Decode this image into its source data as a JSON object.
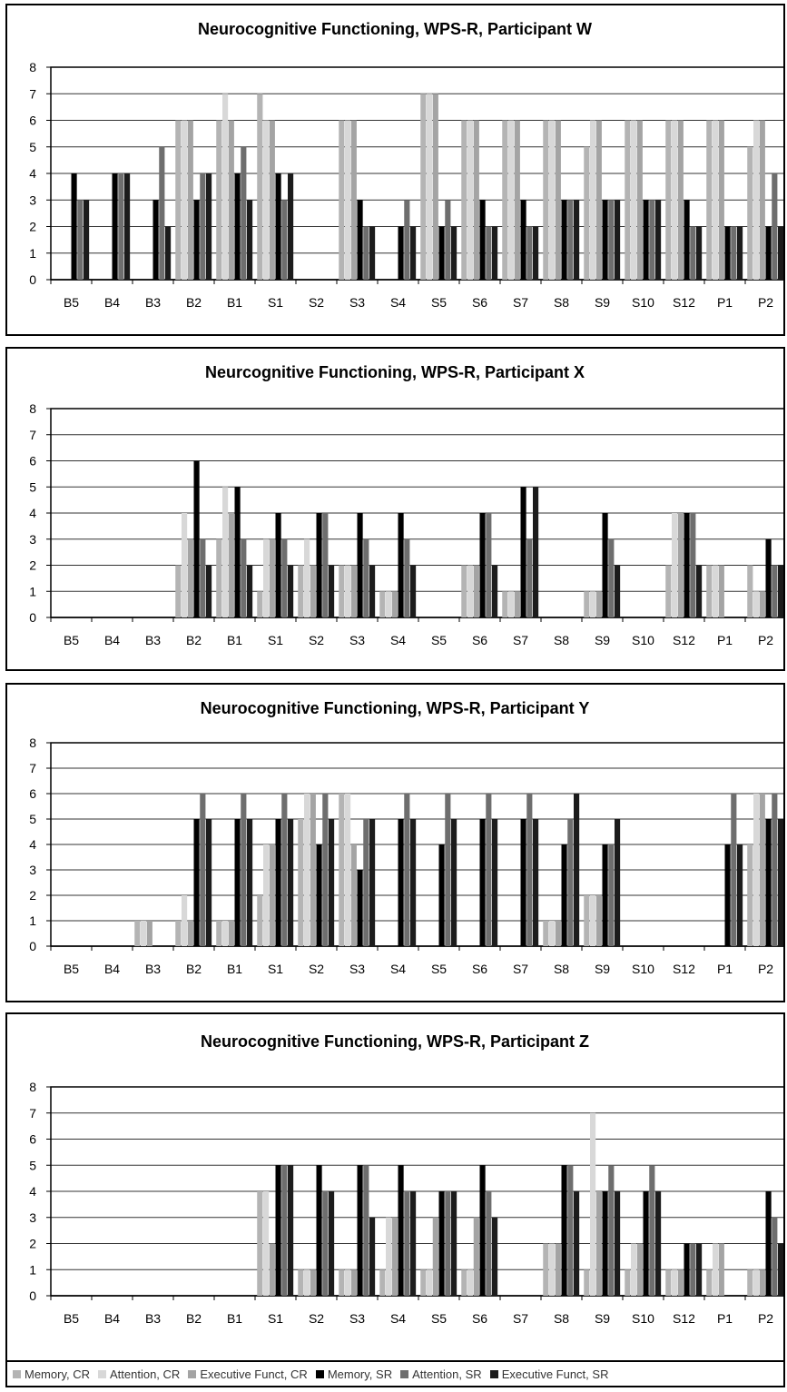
{
  "series_styles": [
    {
      "name": "Memory, CR",
      "color": "#b4b4b4"
    },
    {
      "name": "Attention, CR",
      "color": "#d8d8d8"
    },
    {
      "name": "Executive Funct, CR",
      "color": "#a4a4a4"
    },
    {
      "name": "Memory, SR",
      "color": "#000000"
    },
    {
      "name": "Attention, SR",
      "color": "#6e6e6e"
    },
    {
      "name": "Executive Funct, SR",
      "color": "#1c1c1c"
    }
  ],
  "chart_data": [
    {
      "type": "bar",
      "title": "Neurocognitive Functioning, WPS-R, Participant W",
      "categories": [
        "B5",
        "B4",
        "B3",
        "B2",
        "B1",
        "S1",
        "S2",
        "S3",
        "S4",
        "S5",
        "S6",
        "S7",
        "S8",
        "S9",
        "S10",
        "S12",
        "P1",
        "P2"
      ],
      "ylim": [
        0,
        8
      ],
      "yticks": [
        "0",
        "1",
        "2",
        "3",
        "4",
        "5",
        "6",
        "7",
        "8"
      ],
      "grid": true,
      "series": [
        {
          "name": "Memory, CR",
          "values": [
            0,
            0,
            0,
            6,
            6,
            7,
            0,
            6,
            0,
            7,
            6,
            6,
            6,
            5,
            6,
            6,
            6,
            5
          ]
        },
        {
          "name": "Attention, CR",
          "values": [
            0,
            0,
            0,
            6,
            7,
            6,
            0,
            6,
            0,
            7,
            6,
            6,
            6,
            6,
            6,
            6,
            6,
            6
          ]
        },
        {
          "name": "Executive Funct, CR",
          "values": [
            0,
            0,
            0,
            6,
            6,
            6,
            0,
            6,
            0,
            7,
            6,
            6,
            6,
            6,
            6,
            6,
            6,
            6
          ]
        },
        {
          "name": "Memory, SR",
          "values": [
            4,
            4,
            3,
            3,
            4,
            4,
            0,
            3,
            2,
            2,
            3,
            3,
            3,
            3,
            3,
            3,
            2,
            2
          ]
        },
        {
          "name": "Attention, SR",
          "values": [
            3,
            4,
            5,
            4,
            5,
            3,
            0,
            2,
            3,
            3,
            2,
            2,
            3,
            3,
            3,
            2,
            2,
            4
          ]
        },
        {
          "name": "Executive Funct, SR",
          "values": [
            3,
            4,
            2,
            4,
            3,
            4,
            0,
            2,
            2,
            2,
            2,
            2,
            3,
            3,
            3,
            2,
            2,
            2
          ]
        }
      ]
    },
    {
      "type": "bar",
      "title": "Neurcognitive Functioning, WPS-R, Participant X",
      "categories": [
        "B5",
        "B4",
        "B3",
        "B2",
        "B1",
        "S1",
        "S2",
        "S3",
        "S4",
        "S5",
        "S6",
        "S7",
        "S8",
        "S9",
        "S10",
        "S12",
        "P1",
        "P2"
      ],
      "ylim": [
        0,
        8
      ],
      "yticks": [
        "0",
        "1",
        "2",
        "3",
        "4",
        "5",
        "6",
        "7",
        "8"
      ],
      "grid": true,
      "series": [
        {
          "name": "Memory, CR",
          "values": [
            0,
            0,
            0,
            2,
            3,
            1,
            2,
            2,
            1,
            0,
            2,
            1,
            0,
            1,
            0,
            2,
            2,
            2
          ]
        },
        {
          "name": "Attention, CR",
          "values": [
            0,
            0,
            0,
            4,
            5,
            3,
            3,
            2,
            1,
            0,
            2,
            1,
            0,
            1,
            0,
            4,
            2,
            1
          ]
        },
        {
          "name": "Executive Funct, CR",
          "values": [
            0,
            0,
            0,
            3,
            4,
            3,
            2,
            2,
            1,
            0,
            2,
            1,
            0,
            1,
            0,
            4,
            2,
            1
          ]
        },
        {
          "name": "Memory, SR",
          "values": [
            0,
            0,
            0,
            6,
            5,
            4,
            4,
            4,
            4,
            0,
            4,
            5,
            0,
            4,
            0,
            4,
            0,
            3
          ]
        },
        {
          "name": "Attention, SR",
          "values": [
            0,
            0,
            0,
            3,
            3,
            3,
            4,
            3,
            3,
            0,
            4,
            3,
            0,
            3,
            0,
            4,
            0,
            2
          ]
        },
        {
          "name": "Executive Funct, SR",
          "values": [
            0,
            0,
            0,
            2,
            2,
            2,
            2,
            2,
            2,
            0,
            2,
            5,
            0,
            2,
            0,
            2,
            0,
            2
          ]
        }
      ]
    },
    {
      "type": "bar",
      "title": "Neurocognitive Functioning, WPS-R, Participant Y",
      "categories": [
        "B5",
        "B4",
        "B3",
        "B2",
        "B1",
        "S1",
        "S2",
        "S3",
        "S4",
        "S5",
        "S6",
        "S7",
        "S8",
        "S9",
        "S10",
        "S12",
        "P1",
        "P2"
      ],
      "ylim": [
        0,
        8
      ],
      "yticks": [
        "0",
        "1",
        "2",
        "3",
        "4",
        "5",
        "6",
        "7",
        "8"
      ],
      "grid": true,
      "series": [
        {
          "name": "Memory, CR",
          "values": [
            0,
            0,
            1,
            1,
            1,
            2,
            5,
            6,
            0,
            0,
            0,
            0,
            1,
            2,
            0,
            0,
            0,
            4
          ]
        },
        {
          "name": "Attention, CR",
          "values": [
            0,
            0,
            1,
            2,
            1,
            4,
            6,
            6,
            0,
            0,
            0,
            0,
            1,
            2,
            0,
            0,
            0,
            6
          ]
        },
        {
          "name": "Executive Funct, CR",
          "values": [
            0,
            0,
            1,
            1,
            1,
            4,
            6,
            4,
            0,
            0,
            0,
            0,
            1,
            2,
            0,
            0,
            0,
            6
          ]
        },
        {
          "name": "Memory, SR",
          "values": [
            0,
            0,
            0,
            5,
            5,
            5,
            4,
            3,
            5,
            4,
            5,
            5,
            4,
            4,
            0,
            0,
            4,
            5
          ]
        },
        {
          "name": "Attention, SR",
          "values": [
            0,
            0,
            0,
            6,
            6,
            6,
            6,
            5,
            6,
            6,
            6,
            6,
            5,
            4,
            0,
            0,
            6,
            6
          ]
        },
        {
          "name": "Executive Funct, SR",
          "values": [
            0,
            0,
            0,
            5,
            5,
            5,
            5,
            5,
            5,
            5,
            5,
            5,
            6,
            5,
            0,
            0,
            4,
            5
          ]
        }
      ]
    },
    {
      "type": "bar",
      "title": "Neurocognitive Functioning, WPS-R, Participant Z",
      "categories": [
        "B5",
        "B4",
        "B3",
        "B2",
        "B1",
        "S1",
        "S2",
        "S3",
        "S4",
        "S5",
        "S6",
        "S7",
        "S8",
        "S9",
        "S10",
        "S12",
        "P1",
        "P2"
      ],
      "ylim": [
        0,
        8
      ],
      "yticks": [
        "0",
        "1",
        "2",
        "3",
        "4",
        "5",
        "6",
        "7",
        "8"
      ],
      "grid": true,
      "legend": "bottom",
      "series": [
        {
          "name": "Memory, CR",
          "values": [
            0,
            0,
            0,
            0,
            0,
            4,
            1,
            1,
            1,
            1,
            1,
            0,
            2,
            1,
            1,
            1,
            1,
            1
          ]
        },
        {
          "name": "Attention, CR",
          "values": [
            0,
            0,
            0,
            0,
            0,
            4,
            1,
            1,
            3,
            1,
            1,
            0,
            2,
            7,
            2,
            1,
            2,
            1
          ]
        },
        {
          "name": "Executive Funct, CR",
          "values": [
            0,
            0,
            0,
            0,
            0,
            2,
            1,
            1,
            3,
            3,
            3,
            0,
            2,
            4,
            2,
            1,
            2,
            1
          ]
        },
        {
          "name": "Memory, SR",
          "values": [
            0,
            0,
            0,
            0,
            0,
            5,
            5,
            5,
            5,
            4,
            5,
            0,
            5,
            4,
            4,
            2,
            0,
            4
          ]
        },
        {
          "name": "Attention, SR",
          "values": [
            0,
            0,
            0,
            0,
            0,
            5,
            4,
            5,
            4,
            4,
            4,
            0,
            5,
            5,
            5,
            2,
            0,
            3
          ]
        },
        {
          "name": "Executive Funct, SR",
          "values": [
            0,
            0,
            0,
            0,
            0,
            5,
            4,
            3,
            4,
            4,
            3,
            0,
            4,
            4,
            4,
            2,
            0,
            2
          ]
        }
      ]
    }
  ]
}
